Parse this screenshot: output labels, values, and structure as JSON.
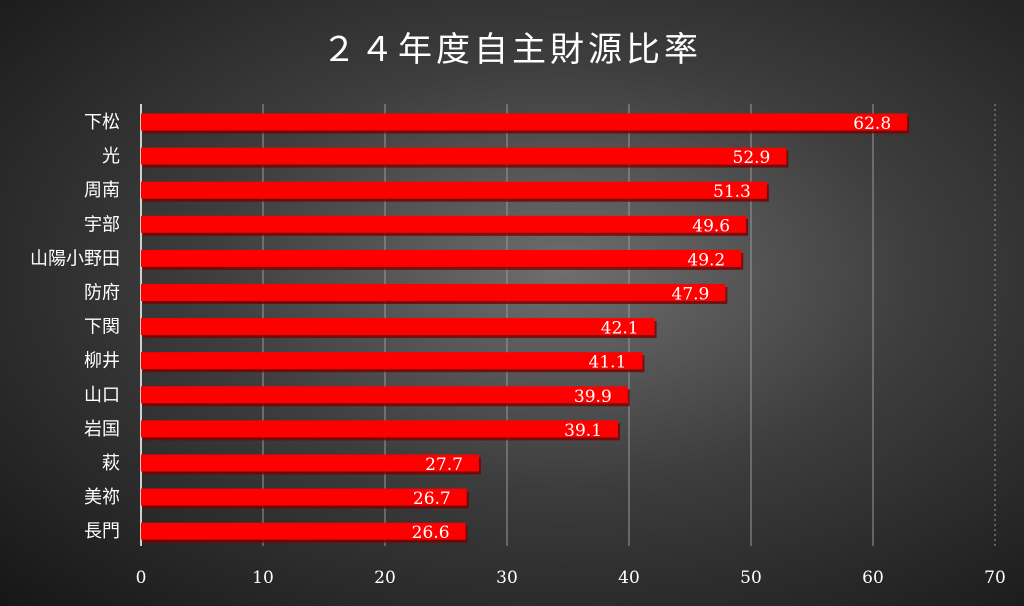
{
  "chart_data": {
    "type": "bar",
    "orientation": "horizontal",
    "title": "２４年度自主財源比率",
    "categories": [
      "下松",
      "光",
      "周南",
      "宇部",
      "山陽小野田",
      "防府",
      "下関",
      "柳井",
      "山口",
      "岩国",
      "萩",
      "美祢",
      "長門"
    ],
    "values": [
      62.8,
      52.9,
      51.3,
      49.6,
      49.2,
      47.9,
      42.1,
      41.1,
      39.9,
      39.1,
      27.7,
      26.7,
      26.6
    ],
    "x_ticks": [
      "0",
      "10",
      "20",
      "30",
      "40",
      "50",
      "60",
      "70"
    ],
    "xlim": [
      0,
      70
    ],
    "xlabel": "",
    "ylabel": "",
    "grid": true,
    "legend": "none",
    "colors": {
      "bar": "#ff0000",
      "bar_shadow": "#7a0000",
      "text": "#ffffff",
      "grid": "#9a9a9a"
    }
  }
}
